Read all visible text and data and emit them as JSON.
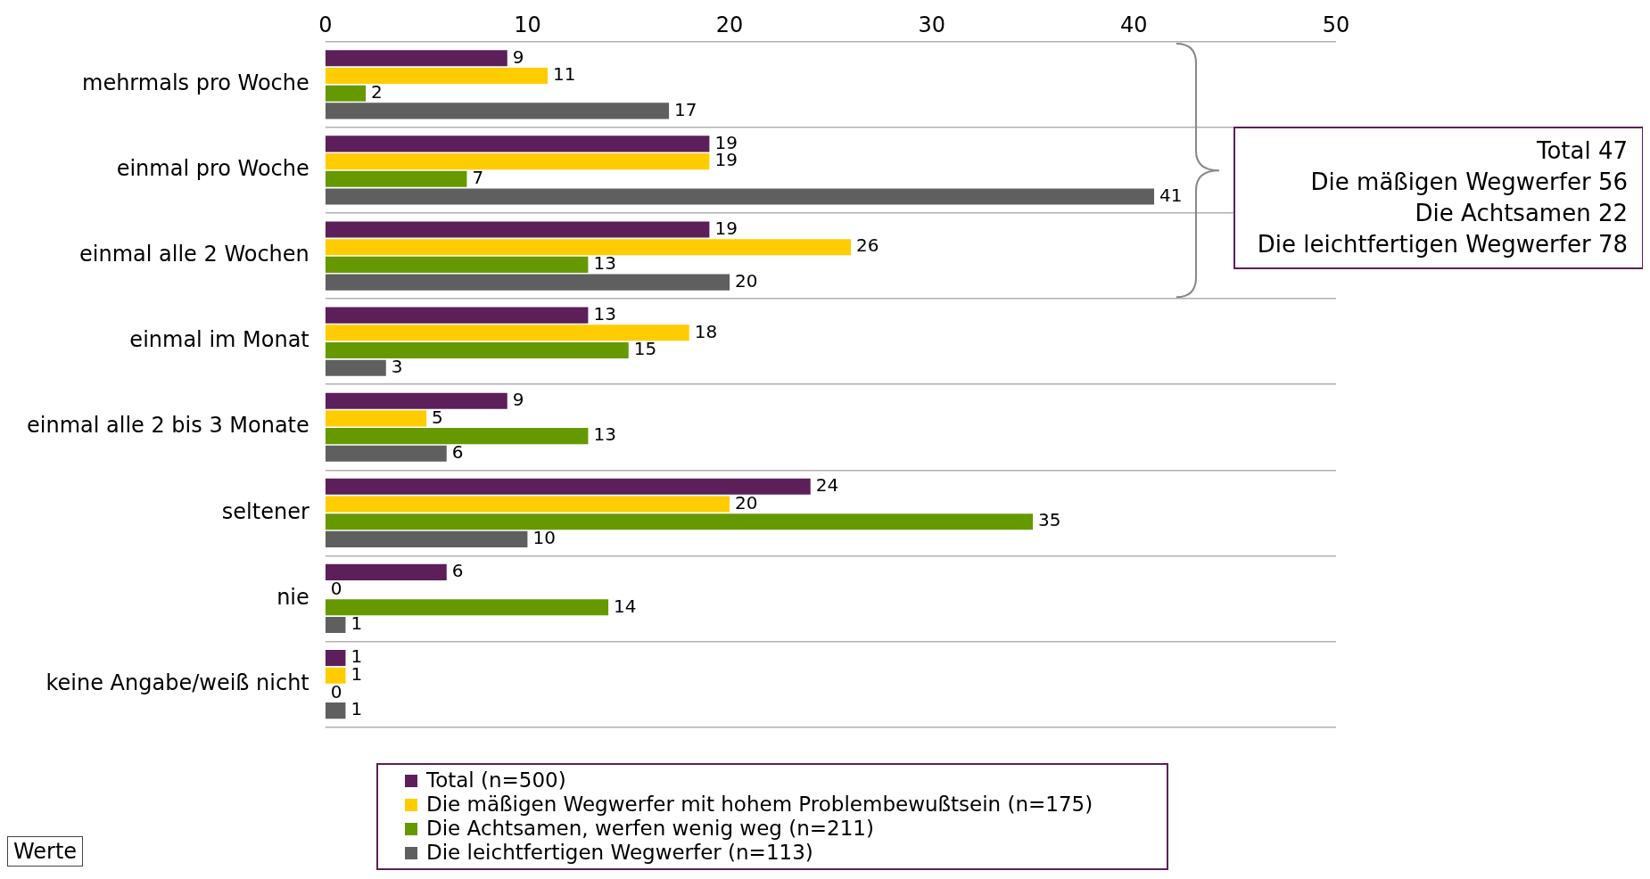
{
  "chart_data": {
    "type": "bar",
    "orientation": "horizontal",
    "categories": [
      "mehrmals pro Woche",
      "einmal pro Woche",
      "einmal alle 2 Wochen",
      "einmal im Monat",
      "einmal alle 2 bis 3 Monate",
      "seltener",
      "nie",
      "keine Angabe/weiß nicht"
    ],
    "series": [
      {
        "name": "Total (n=500)",
        "color": "#5c1f5a",
        "values": [
          9,
          19,
          19,
          13,
          9,
          24,
          6,
          1
        ]
      },
      {
        "name": "Die mäßigen Wegwerfer mit hohem Problembewußtsein (n=175)",
        "color": "#ffcc00",
        "values": [
          11,
          19,
          26,
          18,
          5,
          20,
          0,
          1
        ]
      },
      {
        "name": "Die Achtsamen, werfen wenig weg (n=211)",
        "color": "#669900",
        "values": [
          2,
          7,
          13,
          15,
          13,
          35,
          14,
          0
        ]
      },
      {
        "name": "Die leichtfertigen Wegwerfer (n=113)",
        "color": "#5f5f5f",
        "values": [
          17,
          41,
          20,
          3,
          6,
          10,
          1,
          1
        ]
      }
    ],
    "xlim": [
      0,
      50
    ],
    "xticks": [
      0,
      10,
      20,
      30,
      40,
      50
    ],
    "grid": "y",
    "data_labels": true,
    "legend": "bottom",
    "annotations": [
      "Total 47",
      "Die mäßigen Wegwerfer 56",
      "Die Achtsamen 22",
      "Die leichtfertigen Wegwerfer 78",
      "Werte"
    ]
  }
}
